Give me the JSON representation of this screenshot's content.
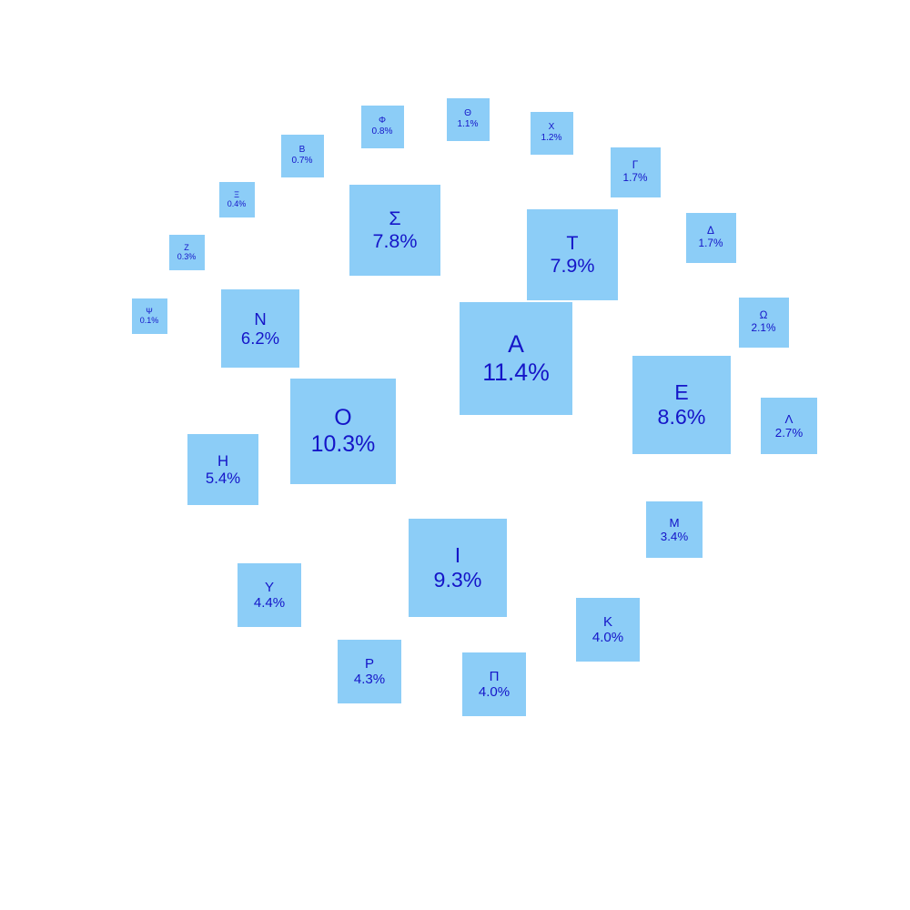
{
  "chart_data": {
    "type": "bubble-squares",
    "title": "",
    "colors": {
      "tile": "#8ccdf7",
      "text": "#1515c8"
    },
    "items": [
      {
        "letter": "Α",
        "value": 11.4,
        "label": "11.4%"
      },
      {
        "letter": "Ο",
        "value": 10.3,
        "label": "10.3%"
      },
      {
        "letter": "Ι",
        "value": 9.3,
        "label": "9.3%"
      },
      {
        "letter": "Ε",
        "value": 8.6,
        "label": "8.6%"
      },
      {
        "letter": "Τ",
        "value": 7.9,
        "label": "7.9%"
      },
      {
        "letter": "Σ",
        "value": 7.8,
        "label": "7.8%"
      },
      {
        "letter": "Ν",
        "value": 6.2,
        "label": "6.2%"
      },
      {
        "letter": "Η",
        "value": 5.4,
        "label": "5.4%"
      },
      {
        "letter": "Υ",
        "value": 4.4,
        "label": "4.4%"
      },
      {
        "letter": "Ρ",
        "value": 4.3,
        "label": "4.3%"
      },
      {
        "letter": "Π",
        "value": 4.0,
        "label": "4.0%"
      },
      {
        "letter": "Κ",
        "value": 4.0,
        "label": "4.0%"
      },
      {
        "letter": "Μ",
        "value": 3.4,
        "label": "3.4%"
      },
      {
        "letter": "Λ",
        "value": 2.7,
        "label": "2.7%"
      },
      {
        "letter": "Ω",
        "value": 2.1,
        "label": "2.1%"
      },
      {
        "letter": "Δ",
        "value": 1.7,
        "label": "1.7%"
      },
      {
        "letter": "Γ",
        "value": 1.7,
        "label": "1.7%"
      },
      {
        "letter": "Χ",
        "value": 1.2,
        "label": "1.2%"
      },
      {
        "letter": "Θ",
        "value": 1.1,
        "label": "1.1%"
      },
      {
        "letter": "Φ",
        "value": 0.8,
        "label": "0.8%"
      },
      {
        "letter": "Β",
        "value": 0.7,
        "label": "0.7%"
      },
      {
        "letter": "Ξ",
        "value": 0.4,
        "label": "0.4%"
      },
      {
        "letter": "Ζ",
        "value": 0.3,
        "label": "0.3%"
      },
      {
        "letter": "Ψ",
        "value": 0.1,
        "label": "0.1%"
      }
    ]
  }
}
